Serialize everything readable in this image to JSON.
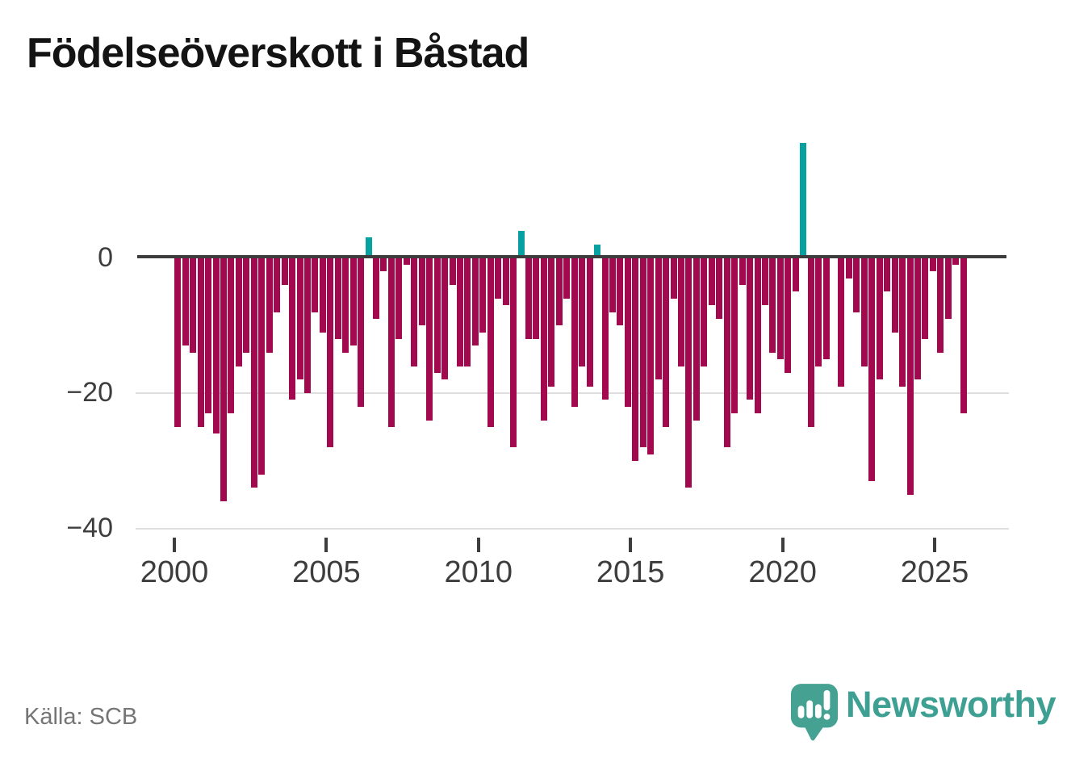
{
  "header": {
    "title": "Födelseöverskott i Båstad"
  },
  "footer": {
    "source": "Källa: SCB",
    "brand": "Newsworthy"
  },
  "colors": {
    "bar_negative": "#a3094f",
    "bar_positive": "#08a1a1",
    "axis": "#3d3d3d",
    "gridline": "#dedede",
    "title_text": "#141414",
    "source_text": "#757575",
    "logo": "#45a192",
    "logo_text": "#3da092"
  },
  "chart_data": {
    "type": "bar",
    "title": "Födelseöverskott i Båstad",
    "xlabel": "",
    "ylabel": "",
    "frequency": "quarterly",
    "start_year": 2000,
    "end_year": 2025,
    "values": [
      -25,
      -13,
      -14,
      -25,
      -23,
      -26,
      -36,
      -23,
      -16,
      -14,
      -34,
      -32,
      -14,
      -8,
      -4,
      -21,
      -18,
      -20,
      -8,
      -11,
      -28,
      -12,
      -14,
      -13,
      -22,
      3,
      -9,
      -2,
      -25,
      -12,
      -1,
      -16,
      -10,
      -24,
      -17,
      -18,
      -4,
      -16,
      -16,
      -13,
      -11,
      -25,
      -6,
      -7,
      -28,
      4,
      -12,
      -12,
      -24,
      -19,
      -10,
      -6,
      -22,
      -16,
      -19,
      2,
      -21,
      -8,
      -10,
      -22,
      -30,
      -28,
      -29,
      -18,
      -25,
      -6,
      -16,
      -34,
      -24,
      -16,
      -7,
      -9,
      -28,
      -23,
      -4,
      -21,
      -23,
      -7,
      -14,
      -15,
      -17,
      -5,
      17,
      -25,
      -16,
      -15,
      0,
      -19,
      -3,
      -8,
      -16,
      -33,
      -18,
      -5,
      -11,
      -19,
      -35,
      -18,
      -12,
      -2,
      -14,
      -9,
      -1,
      -23
    ],
    "y_ticks": [
      {
        "value": 0,
        "label": "0"
      },
      {
        "value": -20,
        "label": "−20"
      },
      {
        "value": -40,
        "label": "−40"
      }
    ],
    "x_ticks": [
      2000,
      2005,
      2010,
      2015,
      2020,
      2025
    ],
    "ylim": [
      -40,
      18
    ],
    "grid": "horizontal",
    "legend": "none",
    "positive_color": "#08a1a1",
    "negative_color": "#a3094f"
  }
}
